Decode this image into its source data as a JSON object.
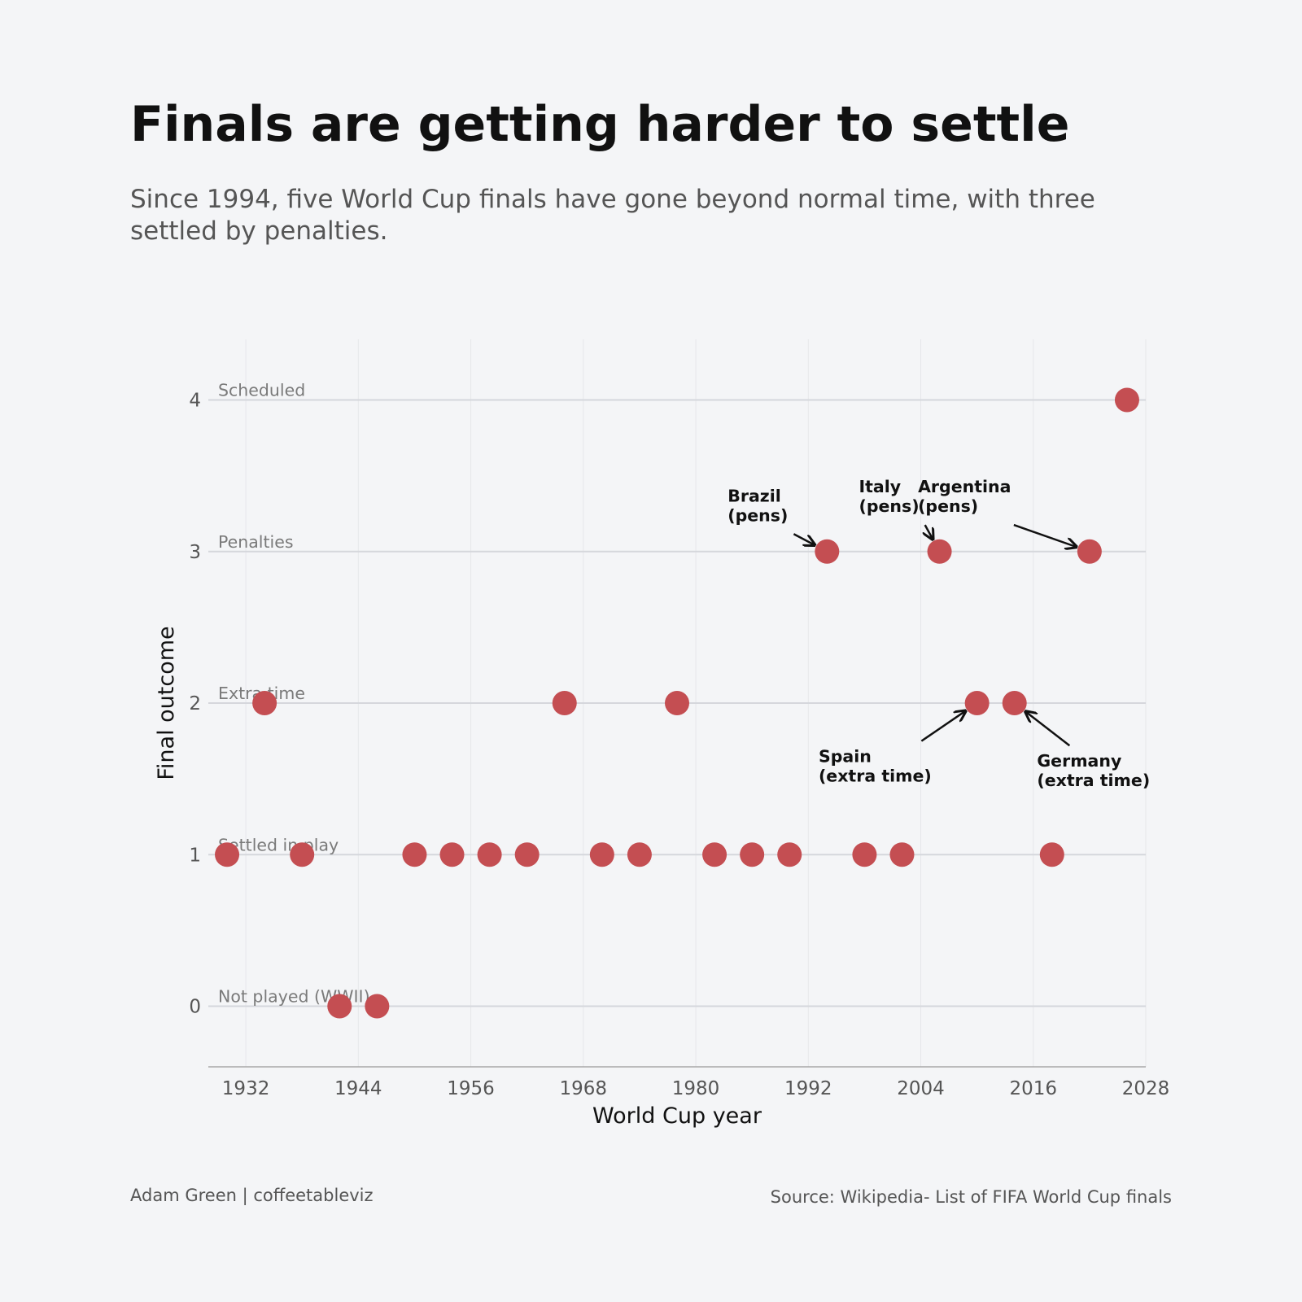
{
  "chart_data": {
    "type": "scatter",
    "title": "Finals are getting harder to settle",
    "subtitle": "Since 1994, five World Cup finals have gone beyond normal time, with three settled by penalties.",
    "xlabel": "World Cup year",
    "ylabel": "Final outcome",
    "xlim": [
      1928,
      2028
    ],
    "ylim": [
      -0.4,
      4.4
    ],
    "x_ticks": [
      1932,
      1944,
      1956,
      1968,
      1980,
      1992,
      2004,
      2016,
      2028
    ],
    "y_ticks": [
      0,
      1,
      2,
      3,
      4
    ],
    "category_labels": [
      {
        "y": 4,
        "label": "Scheduled"
      },
      {
        "y": 3,
        "label": "Penalties"
      },
      {
        "y": 2,
        "label": "Extra time"
      },
      {
        "y": 1,
        "label": "Settled in play"
      },
      {
        "y": 0,
        "label": "Not played (WWII)"
      }
    ],
    "points": [
      {
        "x": 1930,
        "y": 1
      },
      {
        "x": 1934,
        "y": 2
      },
      {
        "x": 1938,
        "y": 1
      },
      {
        "x": 1942,
        "y": 0
      },
      {
        "x": 1946,
        "y": 0
      },
      {
        "x": 1950,
        "y": 1
      },
      {
        "x": 1954,
        "y": 1
      },
      {
        "x": 1958,
        "y": 1
      },
      {
        "x": 1962,
        "y": 1
      },
      {
        "x": 1966,
        "y": 2
      },
      {
        "x": 1970,
        "y": 1
      },
      {
        "x": 1974,
        "y": 1
      },
      {
        "x": 1978,
        "y": 2
      },
      {
        "x": 1982,
        "y": 1
      },
      {
        "x": 1986,
        "y": 1
      },
      {
        "x": 1990,
        "y": 1
      },
      {
        "x": 1994,
        "y": 3
      },
      {
        "x": 1998,
        "y": 1
      },
      {
        "x": 2002,
        "y": 1
      },
      {
        "x": 2006,
        "y": 3
      },
      {
        "x": 2010,
        "y": 2
      },
      {
        "x": 2014,
        "y": 2
      },
      {
        "x": 2018,
        "y": 1
      },
      {
        "x": 2022,
        "y": 3
      },
      {
        "x": 2026,
        "y": 4
      }
    ],
    "annotations": [
      {
        "lines": [
          "Brazil",
          "(pens)"
        ],
        "point": [
          1994,
          3
        ],
        "text_at": [
          1983.4,
          3.33
        ]
      },
      {
        "lines": [
          "Italy",
          "(pens)"
        ],
        "point": [
          2006,
          3
        ],
        "text_at": [
          1997.4,
          3.39
        ]
      },
      {
        "lines": [
          "Argentina",
          "(pens)"
        ],
        "point": [
          2022,
          3
        ],
        "text_at": [
          2003.7,
          3.39
        ]
      },
      {
        "lines": [
          "Spain",
          "(extra time)"
        ],
        "point": [
          2010,
          2
        ],
        "text_at": [
          1993.1,
          1.61
        ]
      },
      {
        "lines": [
          "Germany",
          "(extra time)"
        ],
        "point": [
          2014,
          2
        ],
        "text_at": [
          2016.4,
          1.58
        ]
      }
    ],
    "grid": true,
    "colors": {
      "point": "#c44e52",
      "category_line": "#d5d7dc",
      "vertical_grid": "#e6e7ea",
      "category_label": "#7a7a7a",
      "tick_label": "#555555",
      "axis_label": "#111111",
      "annotation": "#111111"
    }
  },
  "footer": {
    "author": "Adam Green | coffeetableviz",
    "source": "Source: Wikipedia- List of FIFA World Cup finals"
  }
}
